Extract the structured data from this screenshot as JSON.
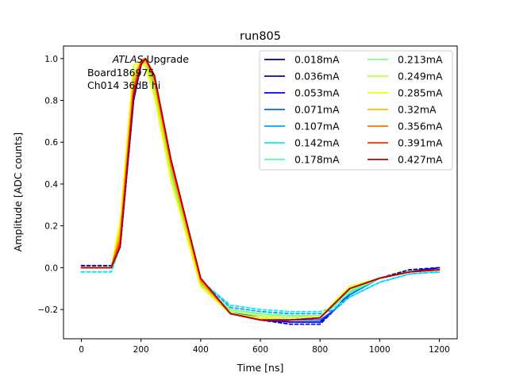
{
  "chart_data": {
    "type": "line",
    "title": "run805",
    "xlabel": "Time [ns]",
    "ylabel": "Amplitude [ADC counts]",
    "xlim": [
      -60,
      1260
    ],
    "ylim": [
      -0.34,
      1.06
    ],
    "x_ticks": [
      0,
      200,
      400,
      600,
      800,
      1000,
      1200
    ],
    "x_tick_labels": [
      "0",
      "200",
      "400",
      "600",
      "800",
      "1000",
      "1200"
    ],
    "y_ticks": [
      -0.2,
      0.0,
      0.2,
      0.4,
      0.6,
      0.8,
      1.0
    ],
    "y_tick_labels": [
      "−0.2",
      "0.0",
      "0.2",
      "0.4",
      "0.6",
      "0.8",
      "1.0"
    ],
    "grid": false,
    "legend_position": "top-right",
    "legend_columns": 2,
    "annotation": {
      "italic": "ATLAS",
      "rest": " Upgrade",
      "line2": " Board186975",
      "line3": " Ch014 36dB hi"
    },
    "series": [
      {
        "name": "0.018mA",
        "color": "#00007f",
        "dashed": true,
        "x": [
          0,
          100,
          130,
          175,
          200,
          215,
          245,
          300,
          400,
          500,
          600,
          700,
          800,
          850,
          900,
          1000,
          1100,
          1200
        ],
        "y": [
          0.01,
          0.01,
          0.1,
          0.8,
          0.97,
          1.0,
          0.9,
          0.5,
          -0.07,
          -0.22,
          -0.25,
          -0.26,
          -0.26,
          -0.2,
          -0.12,
          -0.05,
          -0.01,
          0.0
        ]
      },
      {
        "name": "0.036mA",
        "color": "#0000c8",
        "dashed": true,
        "x": [
          0,
          100,
          130,
          175,
          200,
          215,
          245,
          300,
          400,
          500,
          600,
          700,
          800,
          850,
          900,
          1000,
          1100,
          1200
        ],
        "y": [
          0.0,
          0.0,
          0.1,
          0.8,
          0.97,
          1.0,
          0.9,
          0.5,
          -0.07,
          -0.22,
          -0.25,
          -0.27,
          -0.27,
          -0.2,
          -0.12,
          -0.05,
          -0.02,
          0.0
        ]
      },
      {
        "name": "0.053mA",
        "color": "#0000ff",
        "dashed": false,
        "x": [
          0,
          100,
          130,
          175,
          200,
          215,
          245,
          300,
          400,
          500,
          600,
          700,
          800,
          850,
          900,
          1000,
          1100,
          1200
        ],
        "y": [
          0.0,
          0.0,
          0.1,
          0.8,
          0.97,
          1.0,
          0.9,
          0.5,
          -0.07,
          -0.22,
          -0.25,
          -0.26,
          -0.26,
          -0.2,
          -0.12,
          -0.05,
          -0.02,
          0.0
        ]
      },
      {
        "name": "0.071mA",
        "color": "#0064ff",
        "dashed": false,
        "x": [
          0,
          100,
          130,
          175,
          200,
          215,
          245,
          300,
          400,
          500,
          600,
          700,
          800,
          850,
          900,
          1000,
          1100,
          1200
        ],
        "y": [
          0.0,
          0.0,
          0.1,
          0.82,
          0.98,
          1.0,
          0.88,
          0.48,
          -0.07,
          -0.21,
          -0.24,
          -0.25,
          -0.25,
          -0.2,
          -0.13,
          -0.05,
          -0.02,
          -0.01
        ]
      },
      {
        "name": "0.107mA",
        "color": "#00a4ff",
        "dashed": true,
        "x": [
          0,
          100,
          130,
          175,
          200,
          215,
          245,
          300,
          400,
          500,
          600,
          700,
          800,
          850,
          900,
          1000,
          1100,
          1200
        ],
        "y": [
          -0.02,
          -0.02,
          0.1,
          0.85,
          0.98,
          1.0,
          0.88,
          0.47,
          -0.06,
          -0.19,
          -0.21,
          -0.22,
          -0.22,
          -0.2,
          -0.14,
          -0.07,
          -0.03,
          -0.02
        ]
      },
      {
        "name": "0.142mA",
        "color": "#0deaff",
        "dashed": true,
        "x": [
          0,
          100,
          130,
          175,
          200,
          215,
          245,
          300,
          400,
          500,
          600,
          700,
          800,
          850,
          900,
          1000,
          1100,
          1200
        ],
        "y": [
          -0.02,
          -0.02,
          0.1,
          0.86,
          0.99,
          1.0,
          0.87,
          0.46,
          -0.06,
          -0.18,
          -0.2,
          -0.21,
          -0.21,
          -0.19,
          -0.14,
          -0.07,
          -0.03,
          -0.02
        ]
      },
      {
        "name": "0.178mA",
        "color": "#4dffaa",
        "dashed": false,
        "x": [
          0,
          100,
          130,
          175,
          200,
          215,
          245,
          300,
          400,
          500,
          600,
          700,
          800,
          850,
          900,
          1000,
          1100,
          1200
        ],
        "y": [
          0.0,
          0.0,
          0.15,
          0.88,
          0.99,
          0.99,
          0.86,
          0.45,
          -0.08,
          -0.2,
          -0.22,
          -0.23,
          -0.23,
          -0.18,
          -0.12,
          -0.05,
          -0.02,
          -0.01
        ]
      },
      {
        "name": "0.213mA",
        "color": "#7dff7a",
        "dashed": false,
        "x": [
          0,
          100,
          130,
          175,
          200,
          215,
          245,
          300,
          400,
          500,
          600,
          700,
          800,
          850,
          900,
          1000,
          1100,
          1200
        ],
        "y": [
          0.0,
          0.0,
          0.17,
          0.9,
          0.99,
          0.98,
          0.85,
          0.44,
          -0.08,
          -0.2,
          -0.22,
          -0.23,
          -0.23,
          -0.17,
          -0.11,
          -0.05,
          -0.02,
          -0.01
        ]
      },
      {
        "name": "0.249mA",
        "color": "#b7ff40",
        "dashed": false,
        "x": [
          0,
          100,
          130,
          175,
          200,
          215,
          245,
          300,
          400,
          500,
          600,
          700,
          800,
          850,
          900,
          1000,
          1100,
          1200
        ],
        "y": [
          0.0,
          0.0,
          0.2,
          0.93,
          0.99,
          0.97,
          0.84,
          0.43,
          -0.09,
          -0.21,
          -0.23,
          -0.24,
          -0.23,
          -0.17,
          -0.1,
          -0.05,
          -0.02,
          -0.01
        ]
      },
      {
        "name": "0.285mA",
        "color": "#f1fc06",
        "dashed": false,
        "x": [
          0,
          100,
          130,
          175,
          200,
          215,
          245,
          300,
          400,
          500,
          600,
          700,
          800,
          850,
          900,
          1000,
          1100,
          1200
        ],
        "y": [
          0.0,
          0.0,
          0.22,
          0.97,
          0.98,
          0.96,
          0.82,
          0.42,
          -0.09,
          -0.22,
          -0.24,
          -0.25,
          -0.24,
          -0.16,
          -0.09,
          -0.05,
          -0.02,
          -0.01
        ]
      },
      {
        "name": "0.32mA",
        "color": "#ffb900",
        "dashed": false,
        "x": [
          0,
          100,
          130,
          175,
          200,
          215,
          245,
          300,
          400,
          500,
          600,
          700,
          800,
          850,
          900,
          1000,
          1100,
          1200
        ],
        "y": [
          0.0,
          0.0,
          0.17,
          0.9,
          0.99,
          0.99,
          0.88,
          0.48,
          -0.07,
          -0.22,
          -0.25,
          -0.25,
          -0.24,
          -0.17,
          -0.1,
          -0.05,
          -0.02,
          -0.01
        ]
      },
      {
        "name": "0.356mA",
        "color": "#ff7300",
        "dashed": false,
        "x": [
          0,
          100,
          130,
          175,
          200,
          215,
          245,
          300,
          400,
          500,
          600,
          700,
          800,
          850,
          900,
          1000,
          1100,
          1200
        ],
        "y": [
          0.0,
          0.0,
          0.14,
          0.86,
          0.99,
          1.0,
          0.9,
          0.5,
          -0.06,
          -0.22,
          -0.25,
          -0.25,
          -0.24,
          -0.17,
          -0.1,
          -0.05,
          -0.02,
          -0.01
        ]
      },
      {
        "name": "0.391mA",
        "color": "#ff3000",
        "dashed": false,
        "x": [
          0,
          100,
          130,
          175,
          200,
          215,
          245,
          300,
          400,
          500,
          600,
          700,
          800,
          850,
          900,
          1000,
          1100,
          1200
        ],
        "y": [
          0.0,
          0.0,
          0.12,
          0.84,
          0.98,
          1.0,
          0.91,
          0.51,
          -0.05,
          -0.22,
          -0.25,
          -0.25,
          -0.24,
          -0.17,
          -0.1,
          -0.05,
          -0.02,
          -0.01
        ]
      },
      {
        "name": "0.427mA",
        "color": "#b20000",
        "dashed": false,
        "x": [
          0,
          100,
          130,
          175,
          200,
          215,
          245,
          300,
          400,
          500,
          600,
          700,
          800,
          850,
          900,
          1000,
          1100,
          1200
        ],
        "y": [
          0.0,
          0.0,
          0.1,
          0.82,
          0.97,
          1.0,
          0.92,
          0.52,
          -0.05,
          -0.22,
          -0.25,
          -0.25,
          -0.24,
          -0.17,
          -0.1,
          -0.05,
          -0.02,
          -0.01
        ]
      }
    ]
  }
}
